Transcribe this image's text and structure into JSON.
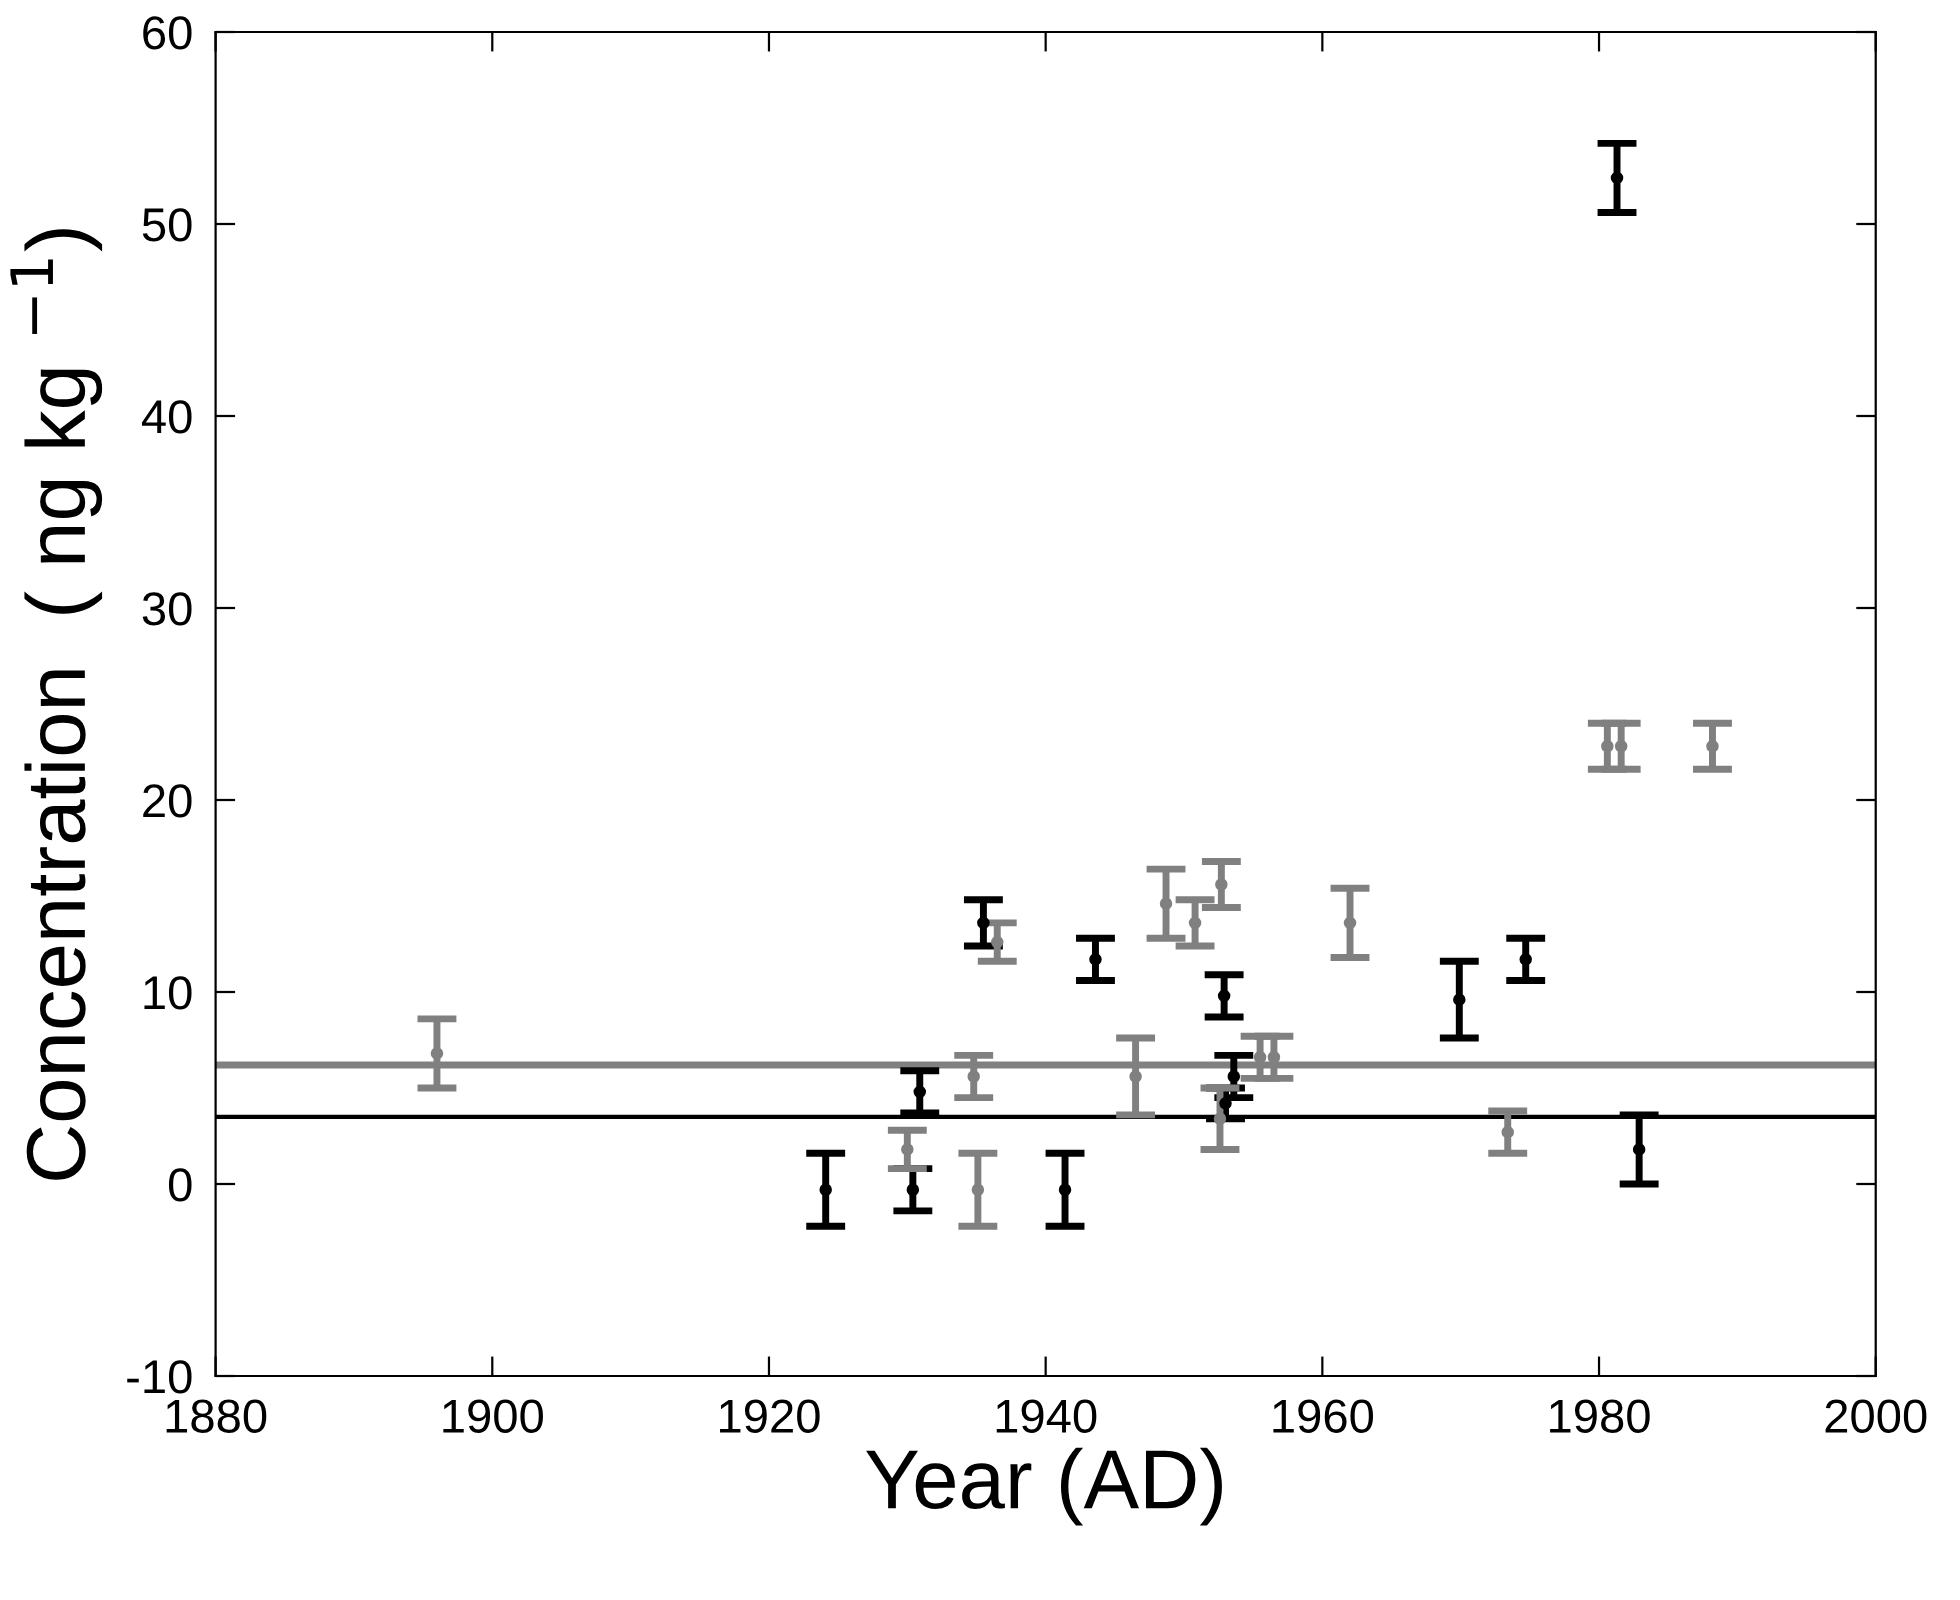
{
  "chart_data": {
    "type": "scatter",
    "xlabel": "Year (AD)",
    "ylabel": "Concentration  ( ng kg $^{−1}$)",
    "grid": false,
    "legend": false,
    "xlim": [
      1880,
      2000
    ],
    "xticks": [
      1880,
      1900,
      1920,
      1940,
      1960,
      1980,
      2000
    ],
    "ylim": [
      -10,
      60
    ],
    "yticks": [
      -10,
      0,
      10,
      20,
      30,
      40,
      50,
      60
    ],
    "series": [
      {
        "color": "#000000",
        "x": [
          1930.9,
          1935.5,
          1943.6,
          1924.1,
          1930.4,
          1941.4,
          1952.9,
          1953.6,
          1953.0,
          1969.9,
          1974.7,
          1982.9,
          1981.3
        ],
        "values": [
          4.8,
          13.6,
          11.7,
          -0.3,
          -0.3,
          -0.3,
          9.8,
          5.6,
          4.2,
          9.6,
          11.7,
          1.8,
          52.4
        ],
        "errors": [
          1.1,
          1.2,
          1.1,
          1.9,
          1.1,
          1.9,
          1.1,
          1.1,
          0.8,
          2,
          1.1,
          1.8,
          1.8
        ]
      },
      {
        "color": "#808080",
        "x": [
          1896.0,
          1934.8,
          1946.5,
          1936.5,
          1930.0,
          1935.1,
          1948.7,
          1950.8,
          1952.7,
          1962.0,
          1955.5,
          1956.5,
          1952.6,
          1973.4,
          1980.6,
          1981.6,
          1988.2
        ],
        "values": [
          6.8,
          5.6,
          5.6,
          12.6,
          1.8,
          -0.3,
          14.6,
          13.6,
          15.6,
          13.6,
          6.6,
          6.6,
          3.4,
          2.7,
          22.8,
          22.8,
          22.8
        ],
        "errors": [
          1.8,
          1.1,
          2,
          1,
          1,
          1.9,
          1.8,
          1.2,
          1.2,
          1.8,
          1.1,
          1.1,
          1.6,
          1.1,
          1.2,
          1.2,
          1.2
        ]
      }
    ],
    "ref_lines": [
      {
        "axis": "y",
        "value": 6.2,
        "color": "#808080"
      },
      {
        "axis": "y",
        "value": 3.5,
        "color": "#000000"
      }
    ]
  }
}
